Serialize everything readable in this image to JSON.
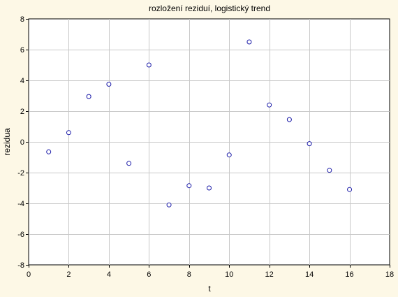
{
  "chart_data": {
    "type": "scatter",
    "title": "rozložení reziduí, logistický trend",
    "xlabel": "t",
    "ylabel": "rezidua",
    "xlim": [
      0,
      18
    ],
    "ylim": [
      -8,
      8
    ],
    "xticks": [
      0,
      2,
      4,
      6,
      8,
      10,
      12,
      14,
      16,
      18
    ],
    "yticks": [
      -8,
      -6,
      -4,
      -2,
      0,
      2,
      4,
      6,
      8
    ],
    "grid": true,
    "marker_color": "#1a1aa8",
    "background_color": "#fdf8e6",
    "points": [
      {
        "x": 1,
        "y": -0.65
      },
      {
        "x": 2,
        "y": 0.6
      },
      {
        "x": 3,
        "y": 2.95
      },
      {
        "x": 4,
        "y": 3.75
      },
      {
        "x": 5,
        "y": -1.4
      },
      {
        "x": 6,
        "y": 5.0
      },
      {
        "x": 7,
        "y": -4.1
      },
      {
        "x": 8,
        "y": -2.85
      },
      {
        "x": 9,
        "y": -3.0
      },
      {
        "x": 10,
        "y": -0.85
      },
      {
        "x": 11,
        "y": 6.5
      },
      {
        "x": 12,
        "y": 2.4
      },
      {
        "x": 13,
        "y": 1.45
      },
      {
        "x": 14,
        "y": -0.12
      },
      {
        "x": 15,
        "y": -1.85
      },
      {
        "x": 16,
        "y": -3.1
      }
    ]
  }
}
